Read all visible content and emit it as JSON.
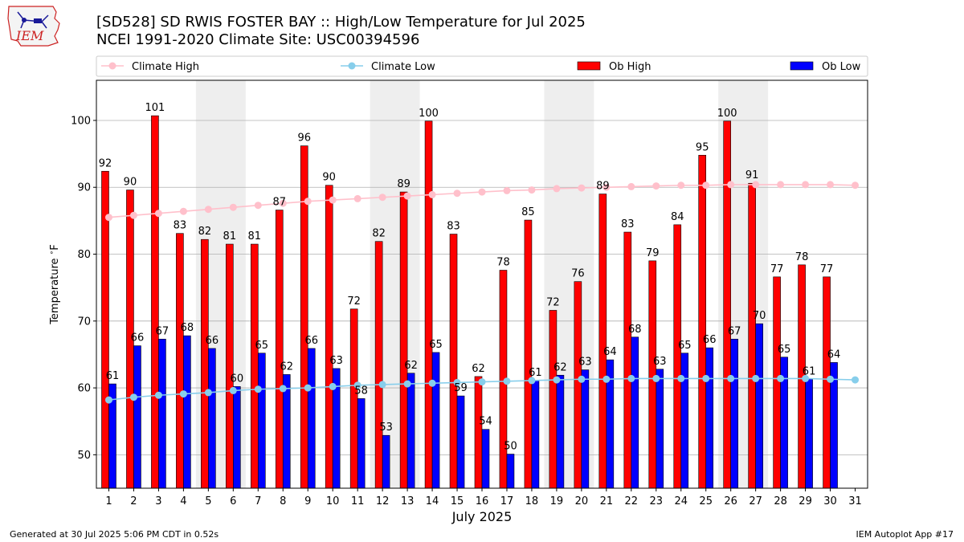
{
  "header": {
    "logo_text": "IEM",
    "title": "[SD528] SD RWIS FOSTER BAY :: High/Low Temperature for Jul 2025",
    "subtitle": "NCEI 1991-2020 Climate Site: USC00394596"
  },
  "footer": {
    "left": "Generated at 30 Jul 2025 5:06 PM CDT in 0.52s",
    "right": "IEM Autoplot App #17"
  },
  "colors": {
    "ob_high": "#ff0000",
    "ob_low": "#0000ff",
    "climate_high": "#ffc0cb",
    "climate_low": "#87ceeb",
    "weekend_shade": "#eeeeee",
    "grid": "#b0b0b0"
  },
  "chart_data": {
    "type": "bar",
    "xlabel": "July 2025",
    "ylabel": "Temperature $^\\circ$F",
    "ylim": [
      45,
      106
    ],
    "yticks": [
      50,
      60,
      70,
      80,
      90,
      100
    ],
    "grid": "horizontal",
    "legend_placement": "top",
    "shaded_days": [
      5,
      6,
      12,
      13,
      19,
      20,
      26,
      27
    ],
    "days": [
      1,
      2,
      3,
      4,
      5,
      6,
      7,
      8,
      9,
      10,
      11,
      12,
      13,
      14,
      15,
      16,
      17,
      18,
      19,
      20,
      21,
      22,
      23,
      24,
      25,
      26,
      27,
      28,
      29,
      30,
      31
    ],
    "series": [
      {
        "name": "Climate High",
        "kind": "line",
        "values": [
          85.5,
          85.8,
          86.1,
          86.4,
          86.7,
          87.0,
          87.3,
          87.6,
          87.9,
          88.1,
          88.3,
          88.5,
          88.7,
          88.9,
          89.1,
          89.3,
          89.5,
          89.6,
          89.8,
          89.9,
          90.0,
          90.1,
          90.2,
          90.3,
          90.3,
          90.4,
          90.4,
          90.4,
          90.4,
          90.4,
          90.3
        ]
      },
      {
        "name": "Climate Low",
        "kind": "line",
        "values": [
          58.2,
          58.6,
          58.9,
          59.1,
          59.3,
          59.6,
          59.8,
          59.9,
          60.0,
          60.2,
          60.4,
          60.5,
          60.6,
          60.7,
          60.8,
          60.9,
          61.0,
          61.1,
          61.2,
          61.3,
          61.3,
          61.4,
          61.4,
          61.4,
          61.4,
          61.4,
          61.4,
          61.4,
          61.4,
          61.3,
          61.2
        ]
      },
      {
        "name": "Ob High",
        "kind": "bar",
        "values": [
          92.4,
          89.6,
          100.7,
          83.1,
          82.2,
          81.5,
          81.5,
          86.6,
          96.2,
          90.3,
          71.8,
          81.9,
          89.3,
          99.9,
          83.0,
          61.7,
          77.6,
          85.1,
          71.6,
          75.9,
          89.0,
          83.3,
          79.0,
          84.4,
          94.8,
          99.9,
          90.6,
          76.6,
          78.4,
          76.6,
          null
        ],
        "labels": [
          "92",
          "90",
          "101",
          "83",
          "82",
          "81",
          "81",
          "87",
          "96",
          "90",
          "72",
          "82",
          "89",
          "100",
          "83",
          "62",
          "78",
          "85",
          "72",
          "76",
          "89",
          "83",
          "79",
          "84",
          "95",
          "100",
          "91",
          "77",
          "78",
          "77",
          ""
        ]
      },
      {
        "name": "Ob Low",
        "kind": "bar",
        "values": [
          60.6,
          66.3,
          67.3,
          67.8,
          65.9,
          60.2,
          65.2,
          62.0,
          65.9,
          62.9,
          58.4,
          52.9,
          62.2,
          65.3,
          58.8,
          53.8,
          50.1,
          61.1,
          61.9,
          62.7,
          64.2,
          67.6,
          62.8,
          65.2,
          66.0,
          67.3,
          69.6,
          64.6,
          61.3,
          63.8,
          null
        ],
        "labels": [
          "61",
          "66",
          "67",
          "68",
          "66",
          "60",
          "65",
          "62",
          "66",
          "63",
          "58",
          "53",
          "62",
          "65",
          "59",
          "54",
          "50",
          "61",
          "62",
          "63",
          "64",
          "68",
          "63",
          "65",
          "66",
          "67",
          "70",
          "65",
          "61",
          "64",
          ""
        ]
      }
    ]
  }
}
